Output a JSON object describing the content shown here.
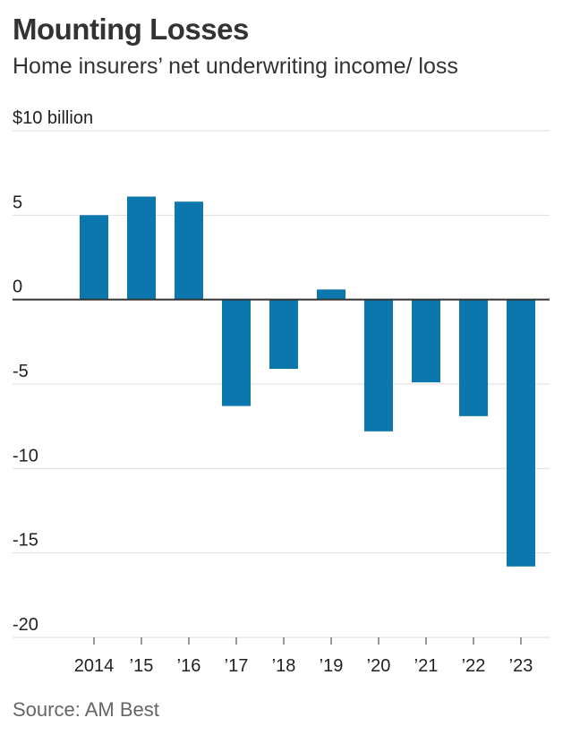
{
  "title": "Mounting Losses",
  "subtitle": "Home insurers’ net underwriting income/ loss",
  "source": "Source: AM Best",
  "chart_data": {
    "type": "bar",
    "title": "Mounting Losses",
    "subtitle": "Home insurers’ net underwriting income/ loss",
    "ylabel": "$10 billion",
    "xlabel": "",
    "categories": [
      "2014",
      "’15",
      "’16",
      "’17",
      "’18",
      "’19",
      "’20",
      "’21",
      "’22",
      "’23"
    ],
    "values": [
      5.0,
      6.1,
      5.8,
      -6.3,
      -4.1,
      0.6,
      -7.8,
      -4.9,
      -6.9,
      -15.8
    ],
    "ylim": [
      -20,
      10
    ],
    "yticks": [
      10,
      5,
      0,
      -5,
      -10,
      -15,
      -20
    ],
    "ytick_labels": [
      "$10 billion",
      "5",
      "0",
      "-5",
      "-10",
      "-15",
      "-20"
    ],
    "grid": true,
    "legend": "none",
    "bar_color": "#0b77ad"
  }
}
